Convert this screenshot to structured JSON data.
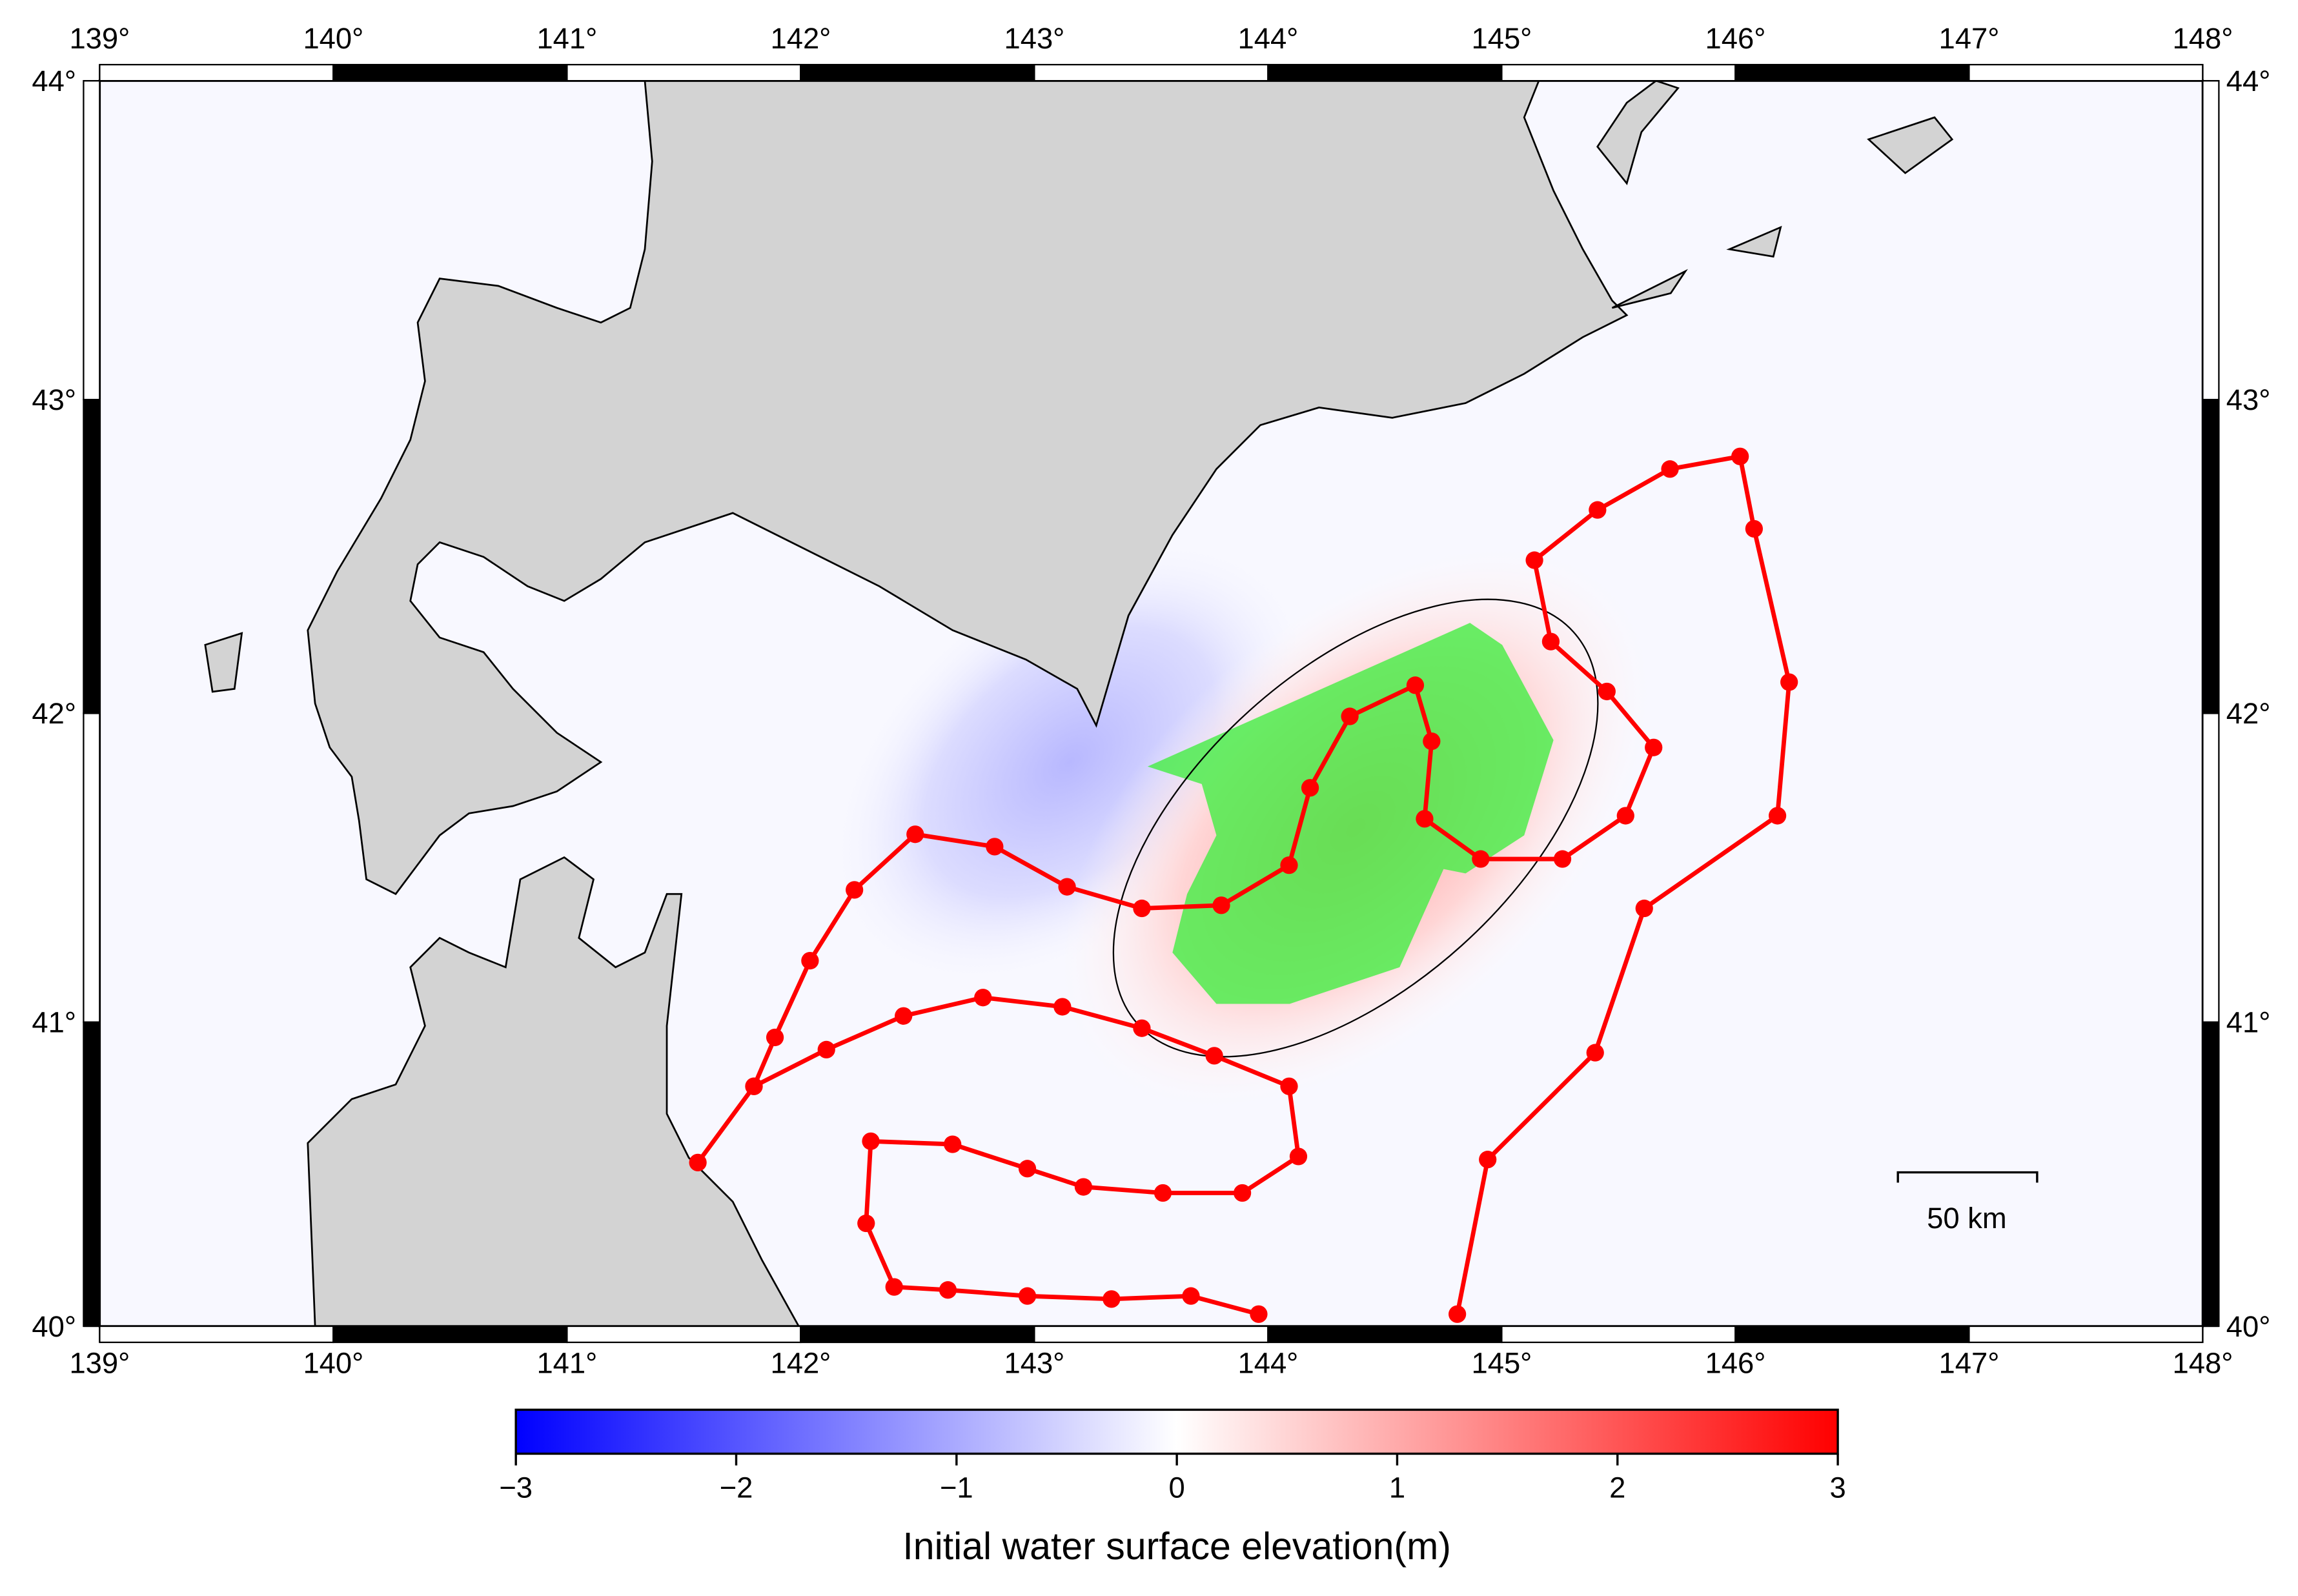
{
  "map": {
    "lon_ticks": [
      {
        "value": 139,
        "label": "139°"
      },
      {
        "value": 140,
        "label": "140°"
      },
      {
        "value": 141,
        "label": "141°"
      },
      {
        "value": 142,
        "label": "142°"
      },
      {
        "value": 143,
        "label": "143°"
      },
      {
        "value": 144,
        "label": "144°"
      },
      {
        "value": 145,
        "label": "145°"
      },
      {
        "value": 146,
        "label": "146°"
      },
      {
        "value": 147,
        "label": "147°"
      },
      {
        "value": 148,
        "label": "148°"
      }
    ],
    "lat_ticks": [
      {
        "value": 40,
        "label": "40°"
      },
      {
        "value": 41,
        "label": "41°"
      },
      {
        "value": 42,
        "label": "42°"
      },
      {
        "value": 43,
        "label": "43°"
      },
      {
        "value": 44,
        "label": "44°"
      }
    ],
    "tracks": [
      {
        "color": "#ff0000",
        "lon": [
          141.56,
          141.8,
          141.89,
          142.04,
          142.23,
          142.49,
          142.83,
          143.14,
          143.46,
          143.8,
          144.09,
          144.18,
          144.35,
          144.63,
          144.7,
          144.67,
          144.91,
          145.26,
          145.53,
          145.65,
          145.45,
          145.21,
          145.14,
          145.41,
          145.72,
          146.02,
          146.08,
          146.23,
          146.18,
          145.61,
          145.4,
          144.94,
          144.81
        ],
        "lat": [
          40.54,
          40.79,
          40.95,
          41.2,
          41.43,
          41.61,
          41.57,
          41.44,
          41.37,
          41.38,
          41.51,
          41.76,
          41.99,
          42.09,
          41.91,
          41.66,
          41.53,
          41.53,
          41.67,
          41.89,
          42.07,
          42.23,
          42.49,
          42.65,
          42.78,
          42.82,
          42.59,
          42.1,
          41.67,
          41.37,
          40.9,
          40.55,
          40.04
        ]
      },
      {
        "color": "#ff0000",
        "lon": [
          141.8,
          142.11,
          142.44,
          142.78,
          143.12,
          143.46,
          143.77,
          144.09,
          144.13,
          143.89,
          143.55,
          143.21,
          142.97,
          142.65,
          142.3,
          142.28,
          142.4,
          142.63,
          142.97,
          143.33,
          143.67,
          143.96
        ],
        "lat": [
          40.79,
          40.91,
          41.02,
          41.08,
          41.05,
          40.98,
          40.89,
          40.79,
          40.56,
          40.44,
          40.44,
          40.46,
          40.52,
          40.6,
          40.61,
          40.34,
          40.13,
          40.12,
          40.1,
          40.09,
          40.1,
          40.04
        ]
      }
    ],
    "scale_bar": {
      "label": "50 km"
    },
    "colorbar": {
      "label": "Initial water surface elevation(m)",
      "range": [
        -3,
        3
      ],
      "ticks": [
        {
          "value": -3,
          "label": "−3"
        },
        {
          "value": -2,
          "label": "−2"
        },
        {
          "value": -1,
          "label": "−1"
        },
        0,
        1,
        2,
        3
      ],
      "colors": [
        "#0000ff",
        "#ffffff",
        "#ff0000"
      ]
    }
  }
}
